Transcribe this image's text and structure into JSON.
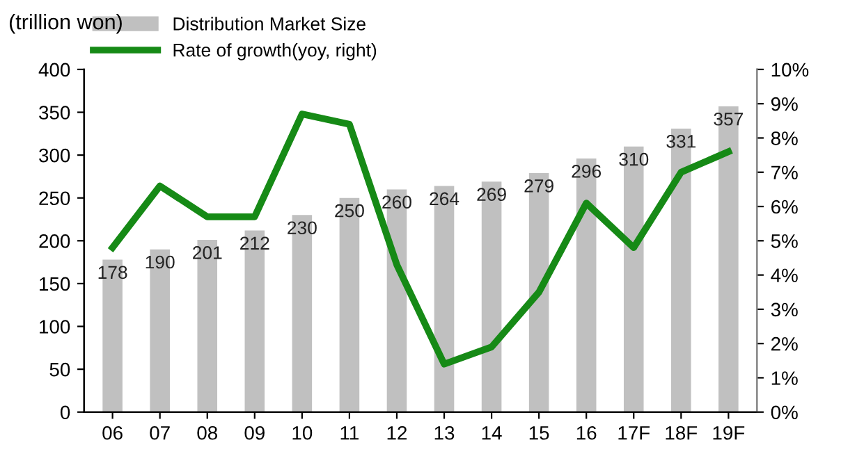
{
  "chart_data": {
    "type": "bar",
    "ylabel": "(trillion won)",
    "categories": [
      "06",
      "07",
      "08",
      "09",
      "10",
      "11",
      "12",
      "13",
      "14",
      "15",
      "16",
      "17F",
      "18F",
      "19F"
    ],
    "series": [
      {
        "name": "Distribution Market Size",
        "color": "#c0c0c0",
        "values": [
          178,
          190,
          201,
          212,
          230,
          250,
          260,
          264,
          269,
          279,
          296,
          310,
          331,
          357
        ],
        "value_labels": [
          "178",
          "190",
          "201",
          "212",
          "230",
          "250",
          "260",
          "264",
          "269",
          "279",
          "296",
          "310",
          "331",
          "357"
        ]
      },
      {
        "name": "Rate of growth(yoy, right)",
        "type": "line",
        "axis": "y2",
        "color": "#168a16",
        "values": [
          4.8,
          6.6,
          5.7,
          5.7,
          8.7,
          8.4,
          4.3,
          1.4,
          1.9,
          3.5,
          6.1,
          4.8,
          7.0,
          7.6
        ]
      }
    ],
    "ylim": [
      0,
      400
    ],
    "yticks": [
      0,
      50,
      100,
      150,
      200,
      250,
      300,
      350,
      400
    ],
    "y2lim": [
      0,
      10
    ],
    "y2ticks": [
      {
        "value": 0,
        "label": "0%"
      },
      {
        "value": 1,
        "label": "1%"
      },
      {
        "value": 2,
        "label": "2%"
      },
      {
        "value": 3,
        "label": "3%"
      },
      {
        "value": 4,
        "label": "4%"
      },
      {
        "value": 5,
        "label": "5%"
      },
      {
        "value": 6,
        "label": "6%"
      },
      {
        "value": 7,
        "label": "7%"
      },
      {
        "value": 8,
        "label": "8%"
      },
      {
        "value": 9,
        "label": "9%"
      },
      {
        "value": 10,
        "label": "10%"
      }
    ],
    "legend": "top left",
    "marker": "none",
    "line_style": "solid"
  }
}
